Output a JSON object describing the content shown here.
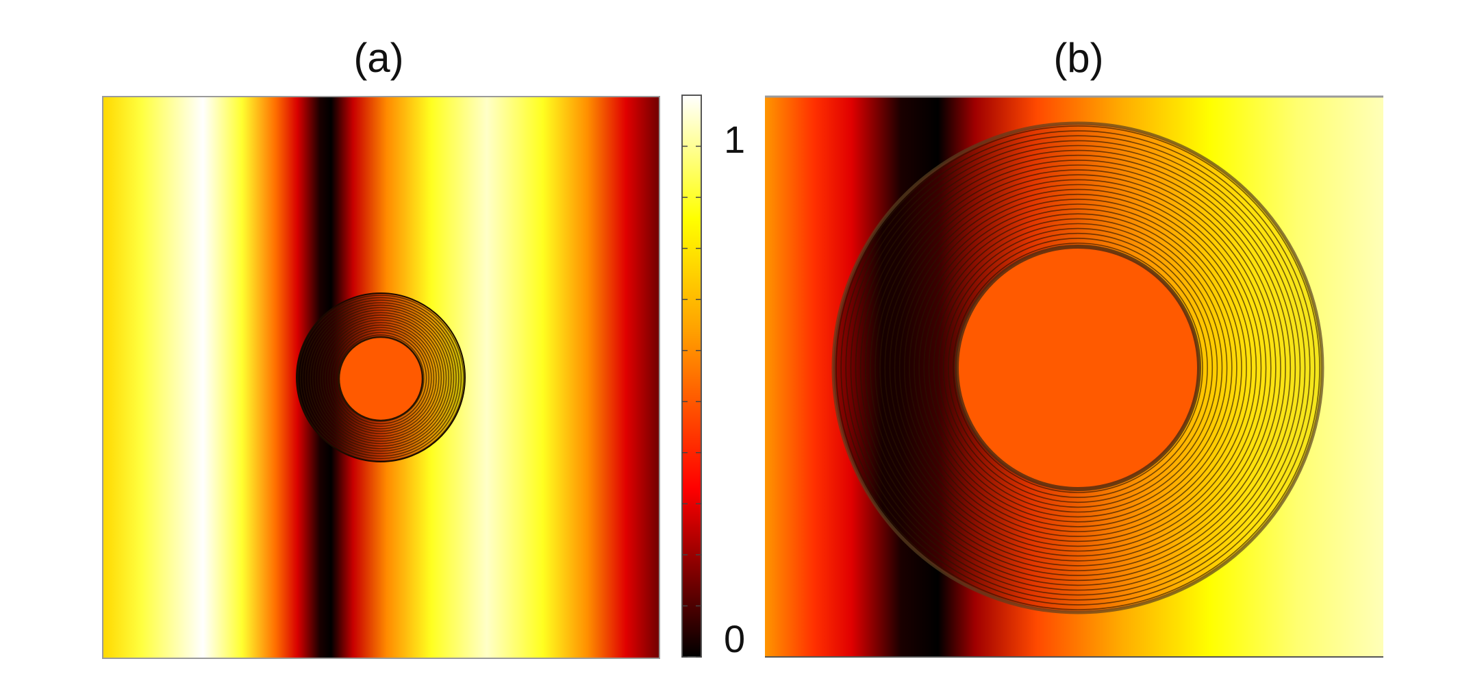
{
  "panels": {
    "a": {
      "label": "(a)"
    },
    "b": {
      "label": "(b)"
    }
  },
  "colorbar": {
    "min_label": "0",
    "max_label": "1",
    "range": [
      0,
      1.1
    ],
    "colormap": "hot"
  },
  "colors": {
    "black": "#000000",
    "red": "#e60000",
    "orange": "#ff5a00",
    "yellow": "#ffff00",
    "white": "#ffffff",
    "core": "#ff5a00"
  }
}
